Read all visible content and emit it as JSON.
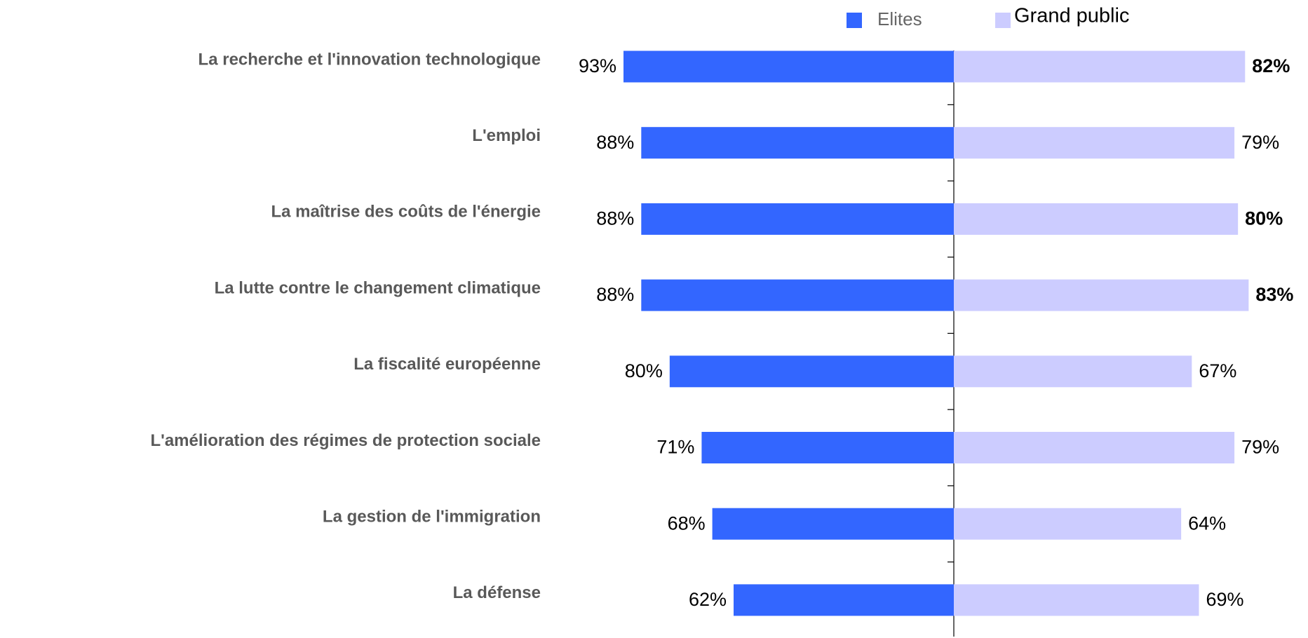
{
  "chart_data": {
    "type": "butterfly-bar",
    "categories": [
      "La recherche et l'innovation technologique",
      "L'emploi",
      "La maîtrise des coûts de l'énergie",
      "La lutte contre le changement climatique",
      "La fiscalité européenne",
      "L'amélioration des régimes de protection sociale",
      "La gestion de l'immigration",
      "La défense"
    ],
    "series": [
      {
        "name": "Elites",
        "color": "#3366ff",
        "values": [
          93,
          88,
          88,
          88,
          80,
          71,
          68,
          62
        ],
        "value_labels": [
          "93%",
          "88%",
          "88%",
          "88%",
          "80%",
          "71%",
          "68%",
          "62%"
        ],
        "value_label_bold": [
          false,
          false,
          false,
          false,
          false,
          false,
          false,
          false
        ]
      },
      {
        "name": "Grand public",
        "color": "#ccccff",
        "values": [
          82,
          79,
          80,
          83,
          67,
          79,
          64,
          69
        ],
        "value_labels": [
          "82%",
          "79%",
          "80%",
          "83%",
          "67%",
          "79%",
          "64%",
          "69%"
        ],
        "value_label_bold": [
          true,
          false,
          true,
          true,
          false,
          false,
          false,
          false
        ]
      }
    ]
  }
}
